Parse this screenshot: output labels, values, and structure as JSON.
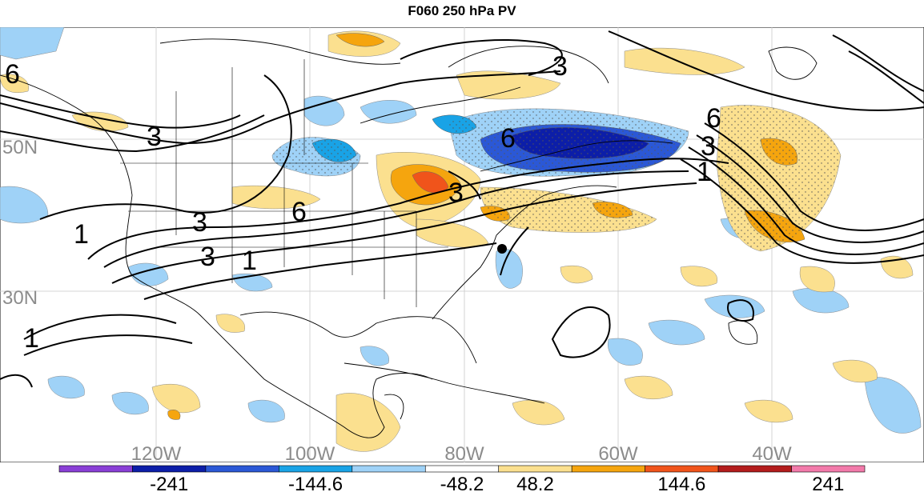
{
  "title": "F060 250 hPa PV",
  "lon_labels": [
    "120W",
    "100W",
    "80W",
    "60W",
    "40W"
  ],
  "lat_labels": [
    "50N",
    "30N"
  ],
  "contour_labels": [
    "6",
    "3",
    "1"
  ],
  "colorbar": {
    "colors": [
      "#8a3fd6",
      "#0c1ea8",
      "#2b58d6",
      "#19a3e6",
      "#9fd2f7",
      "#ffffff",
      "#fbe08f",
      "#f5a50e",
      "#f0541b",
      "#b31c1c",
      "#f27aaa"
    ],
    "labels": [
      "-241",
      "-144.6",
      "-48.2",
      "48.2",
      "144.6",
      "241"
    ]
  },
  "marker": "station-dot"
}
